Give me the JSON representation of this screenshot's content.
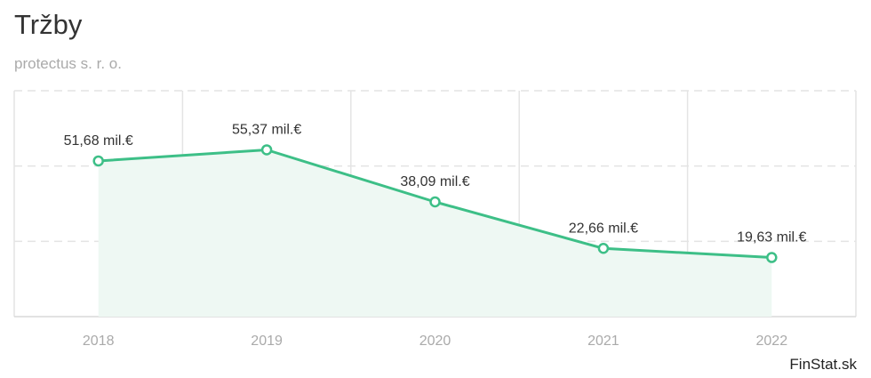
{
  "header": {
    "title": "Tržby",
    "subtitle": "protectus s. r. o."
  },
  "footer": {
    "brand": "FinStat.sk"
  },
  "colors": {
    "line": "#3dbf87",
    "area": "#eef8f3",
    "grid": "#e4e4e4"
  },
  "chart_data": {
    "type": "area",
    "title": "Tržby",
    "subtitle": "protectus s. r. o.",
    "x": [
      "2018",
      "2019",
      "2020",
      "2021",
      "2022"
    ],
    "values": [
      51.68,
      55.37,
      38.09,
      22.66,
      19.63
    ],
    "labels": [
      "51,68 mil.€",
      "55,37 mil.€",
      "38,09 mil.€",
      "22,66 mil.€",
      "19,63 mil.€"
    ],
    "unit": "mil.€",
    "ylim": [
      0,
      75
    ],
    "grid": true,
    "legend": "none"
  }
}
